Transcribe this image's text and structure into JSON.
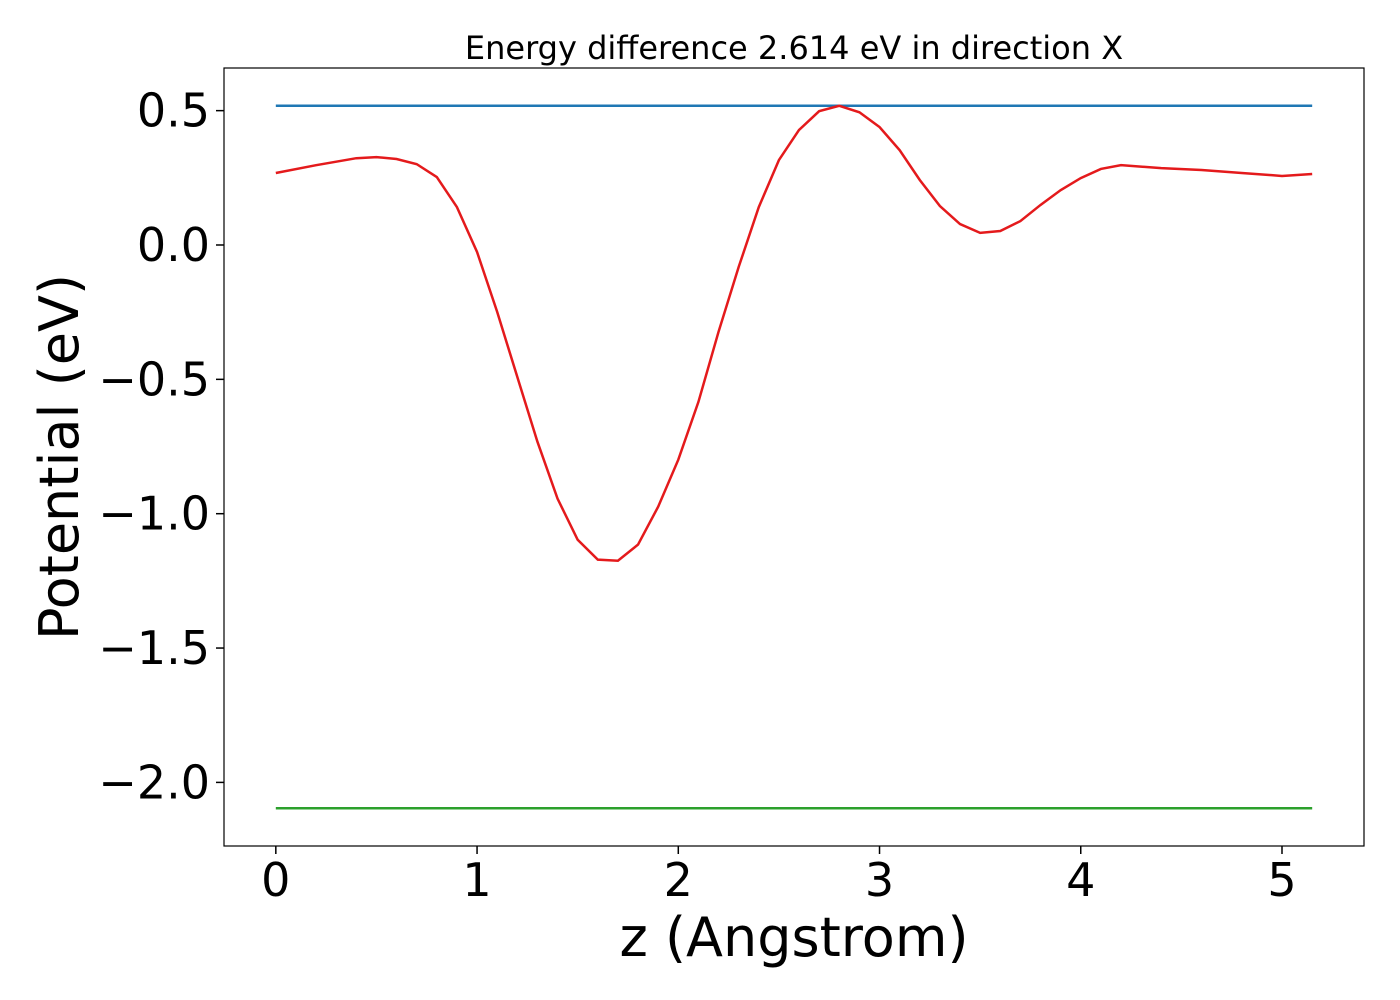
{
  "chart_data": {
    "type": "line",
    "title": "Energy difference 2.614 eV in direction X",
    "xlabel": "z (Angstrom)",
    "ylabel": "Potential (eV)",
    "series": [
      {
        "color": "#1f77b4",
        "x": [
          0,
          5.15
        ],
        "values": [
          0.518,
          0.518
        ]
      },
      {
        "color": "#2ca02c",
        "x": [
          0,
          5.15
        ],
        "values": [
          -2.096,
          -2.096
        ]
      },
      {
        "color": "#e41a1c",
        "x": [
          0,
          0.2,
          0.4,
          0.5,
          0.6,
          0.7,
          0.8,
          0.9,
          1.0,
          1.1,
          1.2,
          1.3,
          1.4,
          1.5,
          1.6,
          1.7,
          1.8,
          1.9,
          2.0,
          2.1,
          2.2,
          2.3,
          2.4,
          2.5,
          2.6,
          2.7,
          2.8,
          2.9,
          3.0,
          3.1,
          3.2,
          3.3,
          3.4,
          3.5,
          3.6,
          3.7,
          3.8,
          3.9,
          4.0,
          4.1,
          4.2,
          4.4,
          4.6,
          4.8,
          5.0,
          5.15
        ],
        "values": [
          0.268,
          0.297,
          0.323,
          0.327,
          0.32,
          0.301,
          0.253,
          0.141,
          -0.026,
          -0.249,
          -0.491,
          -0.732,
          -0.944,
          -1.097,
          -1.171,
          -1.175,
          -1.115,
          -0.974,
          -0.799,
          -0.584,
          -0.323,
          -0.082,
          0.141,
          0.316,
          0.428,
          0.498,
          0.518,
          0.494,
          0.439,
          0.353,
          0.242,
          0.145,
          0.078,
          0.045,
          0.052,
          0.089,
          0.149,
          0.204,
          0.249,
          0.283,
          0.297,
          0.286,
          0.279,
          0.268,
          0.257,
          0.264
        ]
      }
    ],
    "xlim": [
      -0.2575,
      5.4075
    ],
    "ylim": [
      -2.2367,
      0.6587
    ],
    "xticks": [
      0,
      1,
      2,
      3,
      4,
      5
    ],
    "yticks": [
      {
        "value": -2.0,
        "label": "−2.0"
      },
      {
        "value": -1.5,
        "label": "−1.5"
      },
      {
        "value": -1.0,
        "label": "−1.0"
      },
      {
        "value": -0.5,
        "label": "−0.5"
      },
      {
        "value": 0.0,
        "label": "0.0"
      },
      0.5
    ],
    "grid": false
  }
}
